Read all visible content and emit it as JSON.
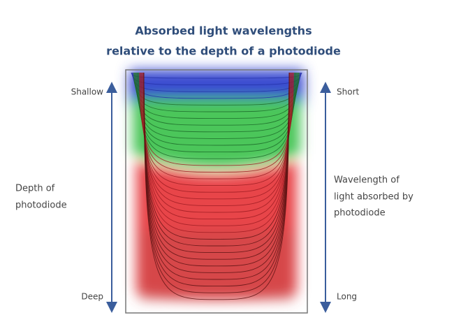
{
  "title": [
    "Absorbed light wavelengths",
    "relative to the depth of a photodiode"
  ],
  "left_axis": {
    "top": "Shallow",
    "bottom": "Deep",
    "label": [
      "Depth of",
      "photodiode"
    ]
  },
  "right_axis": {
    "top": "Short",
    "bottom": "Long",
    "label": [
      "Wavelength of",
      "light absorbed by",
      "photodiode"
    ]
  }
}
